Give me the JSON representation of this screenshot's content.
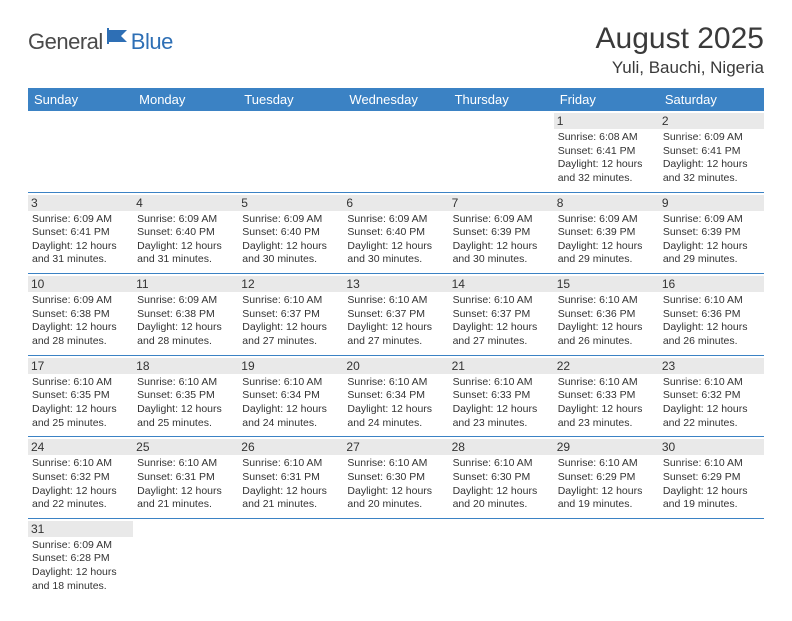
{
  "logo": {
    "part1": "General",
    "part2": "Blue"
  },
  "title": "August 2025",
  "subtitle": "Yuli, Bauchi, Nigeria",
  "colors": {
    "header_bg": "#3b82c4",
    "header_fg": "#ffffff",
    "daynum_bg": "#e9e9e9",
    "border": "#3b82c4",
    "logo_gray": "#4a4a4a",
    "logo_blue": "#2e6fb5"
  },
  "weekdays": [
    "Sunday",
    "Monday",
    "Tuesday",
    "Wednesday",
    "Thursday",
    "Friday",
    "Saturday"
  ],
  "weeks": [
    [
      {
        "n": "",
        "sr": "",
        "ss": "",
        "dl": ""
      },
      {
        "n": "",
        "sr": "",
        "ss": "",
        "dl": ""
      },
      {
        "n": "",
        "sr": "",
        "ss": "",
        "dl": ""
      },
      {
        "n": "",
        "sr": "",
        "ss": "",
        "dl": ""
      },
      {
        "n": "",
        "sr": "",
        "ss": "",
        "dl": ""
      },
      {
        "n": "1",
        "sr": "Sunrise: 6:08 AM",
        "ss": "Sunset: 6:41 PM",
        "dl": "Daylight: 12 hours and 32 minutes."
      },
      {
        "n": "2",
        "sr": "Sunrise: 6:09 AM",
        "ss": "Sunset: 6:41 PM",
        "dl": "Daylight: 12 hours and 32 minutes."
      }
    ],
    [
      {
        "n": "3",
        "sr": "Sunrise: 6:09 AM",
        "ss": "Sunset: 6:41 PM",
        "dl": "Daylight: 12 hours and 31 minutes."
      },
      {
        "n": "4",
        "sr": "Sunrise: 6:09 AM",
        "ss": "Sunset: 6:40 PM",
        "dl": "Daylight: 12 hours and 31 minutes."
      },
      {
        "n": "5",
        "sr": "Sunrise: 6:09 AM",
        "ss": "Sunset: 6:40 PM",
        "dl": "Daylight: 12 hours and 30 minutes."
      },
      {
        "n": "6",
        "sr": "Sunrise: 6:09 AM",
        "ss": "Sunset: 6:40 PM",
        "dl": "Daylight: 12 hours and 30 minutes."
      },
      {
        "n": "7",
        "sr": "Sunrise: 6:09 AM",
        "ss": "Sunset: 6:39 PM",
        "dl": "Daylight: 12 hours and 30 minutes."
      },
      {
        "n": "8",
        "sr": "Sunrise: 6:09 AM",
        "ss": "Sunset: 6:39 PM",
        "dl": "Daylight: 12 hours and 29 minutes."
      },
      {
        "n": "9",
        "sr": "Sunrise: 6:09 AM",
        "ss": "Sunset: 6:39 PM",
        "dl": "Daylight: 12 hours and 29 minutes."
      }
    ],
    [
      {
        "n": "10",
        "sr": "Sunrise: 6:09 AM",
        "ss": "Sunset: 6:38 PM",
        "dl": "Daylight: 12 hours and 28 minutes."
      },
      {
        "n": "11",
        "sr": "Sunrise: 6:09 AM",
        "ss": "Sunset: 6:38 PM",
        "dl": "Daylight: 12 hours and 28 minutes."
      },
      {
        "n": "12",
        "sr": "Sunrise: 6:10 AM",
        "ss": "Sunset: 6:37 PM",
        "dl": "Daylight: 12 hours and 27 minutes."
      },
      {
        "n": "13",
        "sr": "Sunrise: 6:10 AM",
        "ss": "Sunset: 6:37 PM",
        "dl": "Daylight: 12 hours and 27 minutes."
      },
      {
        "n": "14",
        "sr": "Sunrise: 6:10 AM",
        "ss": "Sunset: 6:37 PM",
        "dl": "Daylight: 12 hours and 27 minutes."
      },
      {
        "n": "15",
        "sr": "Sunrise: 6:10 AM",
        "ss": "Sunset: 6:36 PM",
        "dl": "Daylight: 12 hours and 26 minutes."
      },
      {
        "n": "16",
        "sr": "Sunrise: 6:10 AM",
        "ss": "Sunset: 6:36 PM",
        "dl": "Daylight: 12 hours and 26 minutes."
      }
    ],
    [
      {
        "n": "17",
        "sr": "Sunrise: 6:10 AM",
        "ss": "Sunset: 6:35 PM",
        "dl": "Daylight: 12 hours and 25 minutes."
      },
      {
        "n": "18",
        "sr": "Sunrise: 6:10 AM",
        "ss": "Sunset: 6:35 PM",
        "dl": "Daylight: 12 hours and 25 minutes."
      },
      {
        "n": "19",
        "sr": "Sunrise: 6:10 AM",
        "ss": "Sunset: 6:34 PM",
        "dl": "Daylight: 12 hours and 24 minutes."
      },
      {
        "n": "20",
        "sr": "Sunrise: 6:10 AM",
        "ss": "Sunset: 6:34 PM",
        "dl": "Daylight: 12 hours and 24 minutes."
      },
      {
        "n": "21",
        "sr": "Sunrise: 6:10 AM",
        "ss": "Sunset: 6:33 PM",
        "dl": "Daylight: 12 hours and 23 minutes."
      },
      {
        "n": "22",
        "sr": "Sunrise: 6:10 AM",
        "ss": "Sunset: 6:33 PM",
        "dl": "Daylight: 12 hours and 23 minutes."
      },
      {
        "n": "23",
        "sr": "Sunrise: 6:10 AM",
        "ss": "Sunset: 6:32 PM",
        "dl": "Daylight: 12 hours and 22 minutes."
      }
    ],
    [
      {
        "n": "24",
        "sr": "Sunrise: 6:10 AM",
        "ss": "Sunset: 6:32 PM",
        "dl": "Daylight: 12 hours and 22 minutes."
      },
      {
        "n": "25",
        "sr": "Sunrise: 6:10 AM",
        "ss": "Sunset: 6:31 PM",
        "dl": "Daylight: 12 hours and 21 minutes."
      },
      {
        "n": "26",
        "sr": "Sunrise: 6:10 AM",
        "ss": "Sunset: 6:31 PM",
        "dl": "Daylight: 12 hours and 21 minutes."
      },
      {
        "n": "27",
        "sr": "Sunrise: 6:10 AM",
        "ss": "Sunset: 6:30 PM",
        "dl": "Daylight: 12 hours and 20 minutes."
      },
      {
        "n": "28",
        "sr": "Sunrise: 6:10 AM",
        "ss": "Sunset: 6:30 PM",
        "dl": "Daylight: 12 hours and 20 minutes."
      },
      {
        "n": "29",
        "sr": "Sunrise: 6:10 AM",
        "ss": "Sunset: 6:29 PM",
        "dl": "Daylight: 12 hours and 19 minutes."
      },
      {
        "n": "30",
        "sr": "Sunrise: 6:10 AM",
        "ss": "Sunset: 6:29 PM",
        "dl": "Daylight: 12 hours and 19 minutes."
      }
    ],
    [
      {
        "n": "31",
        "sr": "Sunrise: 6:09 AM",
        "ss": "Sunset: 6:28 PM",
        "dl": "Daylight: 12 hours and 18 minutes."
      },
      {
        "n": "",
        "sr": "",
        "ss": "",
        "dl": ""
      },
      {
        "n": "",
        "sr": "",
        "ss": "",
        "dl": ""
      },
      {
        "n": "",
        "sr": "",
        "ss": "",
        "dl": ""
      },
      {
        "n": "",
        "sr": "",
        "ss": "",
        "dl": ""
      },
      {
        "n": "",
        "sr": "",
        "ss": "",
        "dl": ""
      },
      {
        "n": "",
        "sr": "",
        "ss": "",
        "dl": ""
      }
    ]
  ]
}
